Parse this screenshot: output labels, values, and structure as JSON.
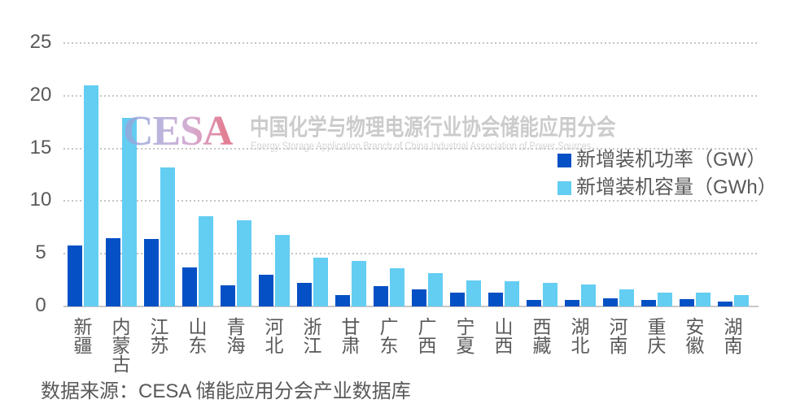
{
  "chart_data": {
    "type": "bar",
    "categories": [
      "新疆",
      "内蒙古",
      "江苏",
      "山东",
      "青海",
      "河北",
      "浙江",
      "甘肃",
      "广东",
      "广西",
      "宁夏",
      "山西",
      "西藏",
      "湖北",
      "河南",
      "重庆",
      "安徽",
      "湖南"
    ],
    "series": [
      {
        "name": "新增装机功率（GW）",
        "color": "#0450c4",
        "values": [
          5.8,
          6.5,
          6.4,
          3.7,
          2.0,
          3.0,
          2.2,
          1.1,
          1.9,
          1.6,
          1.3,
          1.3,
          0.6,
          0.6,
          0.8,
          0.6,
          0.7,
          0.5
        ]
      },
      {
        "name": "新增装机容量（GWh）",
        "color": "#63cdf2",
        "values": [
          21.0,
          17.9,
          13.2,
          8.6,
          8.2,
          6.8,
          4.6,
          4.3,
          3.6,
          3.2,
          2.5,
          2.4,
          2.2,
          2.1,
          1.6,
          1.3,
          1.3,
          1.1
        ]
      }
    ],
    "ylim": [
      0,
      25
    ],
    "yticks": [
      0,
      5,
      10,
      15,
      20,
      25
    ],
    "grid": "dotted-horizontal",
    "legend_position": "right"
  },
  "watermark": {
    "logo_text": "CESA",
    "title_cn": "中国化学与物理电源行业协会储能应用分会",
    "subtitle_en": "Energy Storage Application Branch of China Industrial Association of Power Sources"
  },
  "source_note": "数据来源：CESA 储能应用分会产业数据库",
  "colors": {
    "power_series": "#0450c4",
    "capacity_series": "#63cdf2",
    "axis_text": "#595959",
    "grid_line": "#c6c6c6",
    "baseline": "#c9c9c9",
    "watermark_text": "#c2c2c2"
  }
}
